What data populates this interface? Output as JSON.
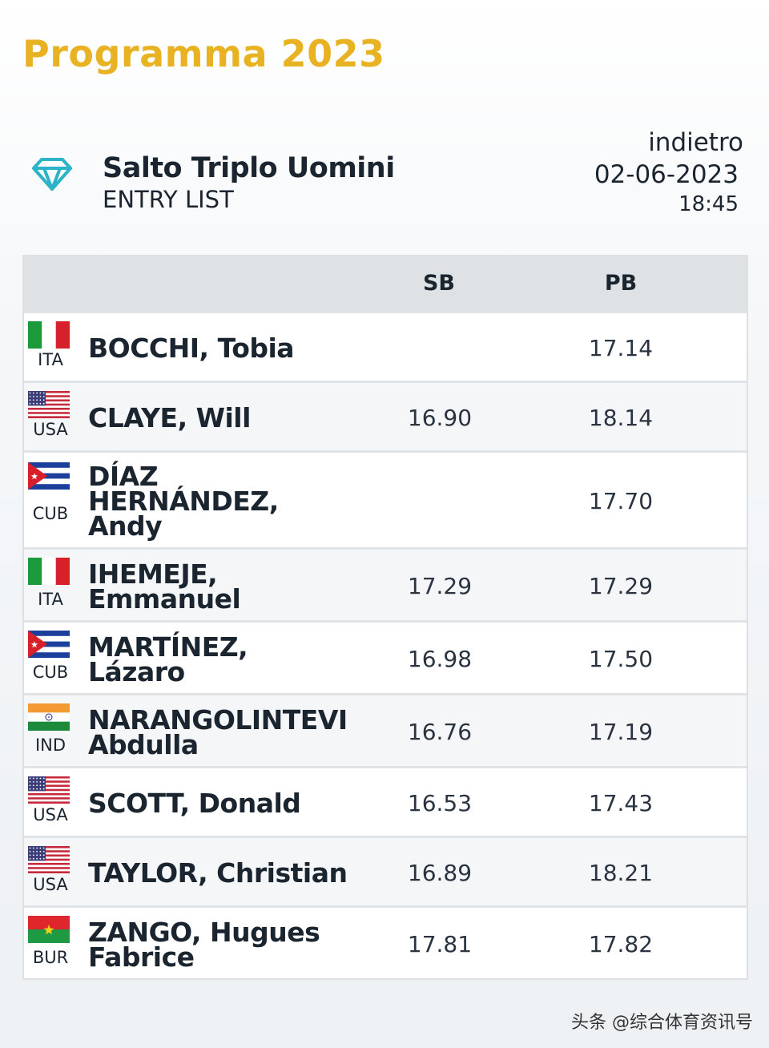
{
  "page": {
    "title": "Programma 2023"
  },
  "event": {
    "name": "Salto Triplo Uomini",
    "subtitle": "ENTRY LIST",
    "back_label": "indietro",
    "date": "02-06-2023",
    "time": "18:45",
    "icon": "diamond-icon"
  },
  "table": {
    "headers": {
      "sb": "SB",
      "pb": "PB"
    },
    "rows": [
      {
        "country": "ITA",
        "flag": "italy-flag-icon",
        "name_lines": [
          "BOCCHI, Tobia"
        ],
        "sb": "",
        "pb": "17.14"
      },
      {
        "country": "USA",
        "flag": "usa-flag-icon",
        "name_lines": [
          "CLAYE, Will"
        ],
        "sb": "16.90",
        "pb": "18.14"
      },
      {
        "country": "CUB",
        "flag": "cuba-flag-icon",
        "name_lines": [
          "DÍAZ",
          "HERNÁNDEZ,",
          "Andy"
        ],
        "sb": "",
        "pb": "17.70"
      },
      {
        "country": "ITA",
        "flag": "italy-flag-icon",
        "name_lines": [
          "IHEMEJE,",
          "Emmanuel"
        ],
        "sb": "17.29",
        "pb": "17.29"
      },
      {
        "country": "CUB",
        "flag": "cuba-flag-icon",
        "name_lines": [
          "MARTÍNEZ,",
          "Lázaro"
        ],
        "sb": "16.98",
        "pb": "17.50"
      },
      {
        "country": "IND",
        "flag": "india-flag-icon",
        "name_lines": [
          "NARANGOLINTEVI",
          "Abdulla"
        ],
        "sb": "16.76",
        "pb": "17.19"
      },
      {
        "country": "USA",
        "flag": "usa-flag-icon",
        "name_lines": [
          "SCOTT, Donald"
        ],
        "sb": "16.53",
        "pb": "17.43"
      },
      {
        "country": "USA",
        "flag": "usa-flag-icon",
        "name_lines": [
          "TAYLOR, Christian"
        ],
        "sb": "16.89",
        "pb": "18.21"
      },
      {
        "country": "BUR",
        "flag": "burkina-faso-flag-icon",
        "name_lines": [
          "ZANGO, Hugues",
          "Fabrice"
        ],
        "sb": "17.81",
        "pb": "17.82"
      }
    ]
  },
  "watermark": "头条 @综合体育资讯号"
}
